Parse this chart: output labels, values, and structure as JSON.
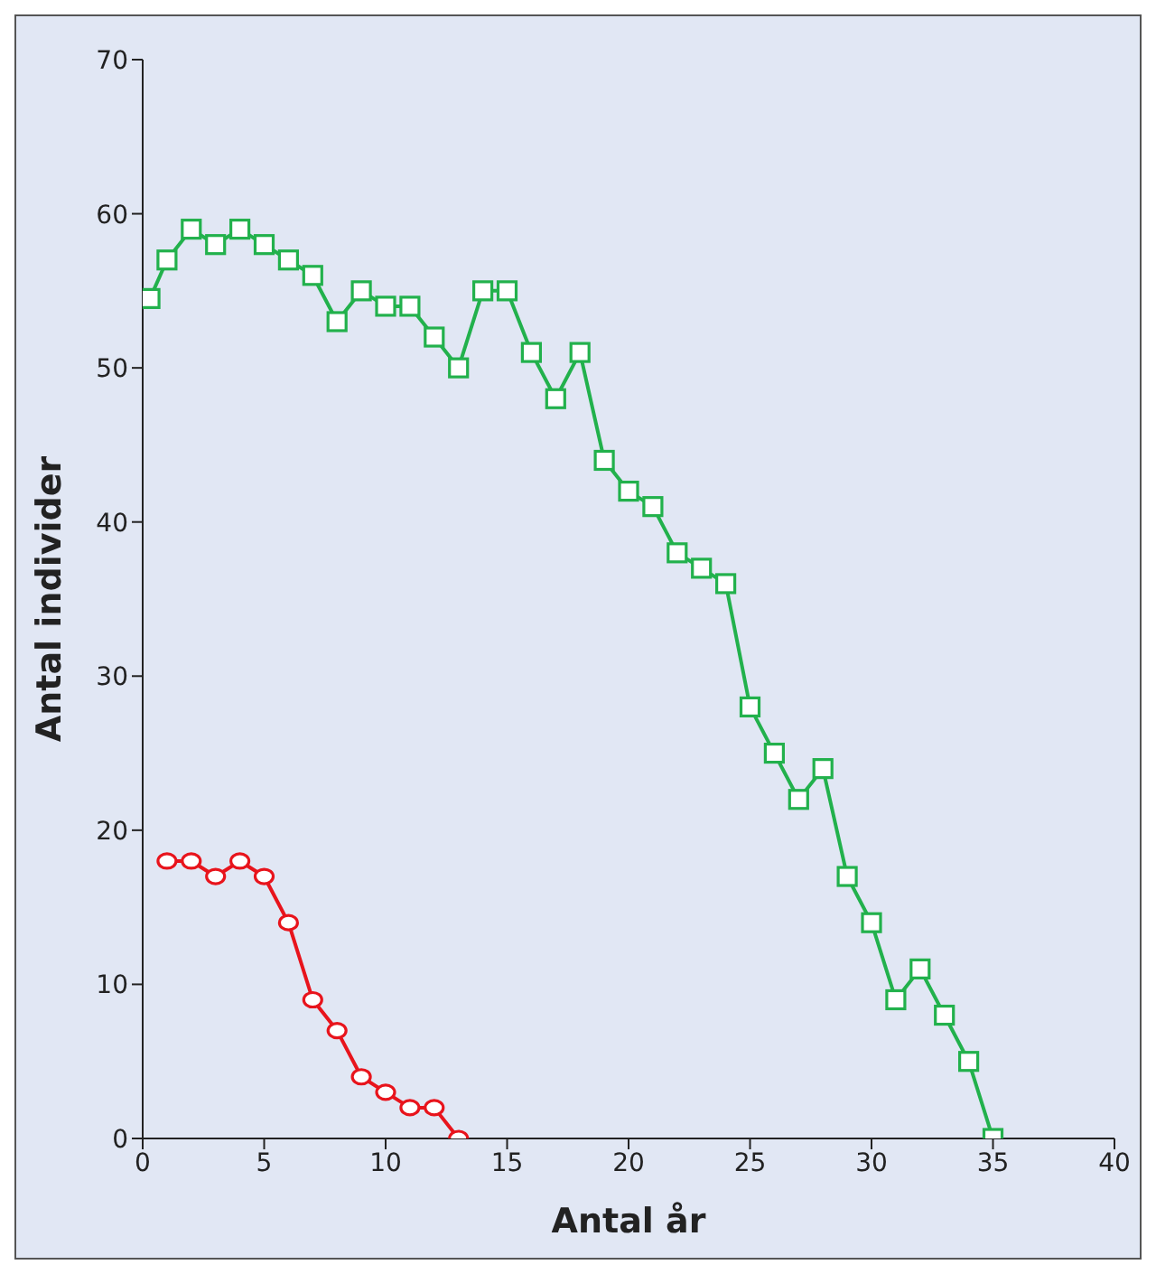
{
  "chart_data": {
    "type": "line",
    "xlabel": "Antal år",
    "ylabel": "Antal individer",
    "xlim": [
      0,
      40
    ],
    "xticks": [
      0,
      5,
      10,
      15,
      20,
      25,
      30,
      35,
      40
    ],
    "ylim": [
      0,
      70
    ],
    "yticks": [
      0,
      10,
      20,
      30,
      40,
      50,
      60,
      70
    ],
    "line_style": "solid",
    "series": [
      {
        "color": "#22b14c",
        "marker": "square",
        "x": [
          0.3,
          1,
          2,
          3,
          4,
          5,
          6,
          7,
          8,
          9,
          10,
          11,
          12,
          13,
          14,
          15,
          16,
          17,
          18,
          19,
          20,
          21,
          22,
          23,
          24,
          25,
          26,
          27,
          28,
          29,
          30,
          31,
          32,
          33,
          34,
          35
        ],
        "values": [
          54.5,
          57,
          59,
          58,
          59,
          58,
          57,
          56,
          53,
          55,
          54,
          54,
          52,
          50,
          55,
          55,
          51,
          48,
          51,
          44,
          42,
          41,
          38,
          37,
          36,
          28,
          25,
          22,
          24,
          17,
          14,
          9,
          11,
          8,
          5,
          0
        ]
      },
      {
        "color": "#e8141c",
        "marker": "circle",
        "x": [
          1,
          2,
          3,
          4,
          5,
          6,
          7,
          8,
          9,
          10,
          11,
          12,
          13
        ],
        "values": [
          18,
          18,
          17,
          18,
          17,
          14,
          9,
          7,
          4,
          3,
          2,
          2,
          0
        ]
      }
    ]
  }
}
